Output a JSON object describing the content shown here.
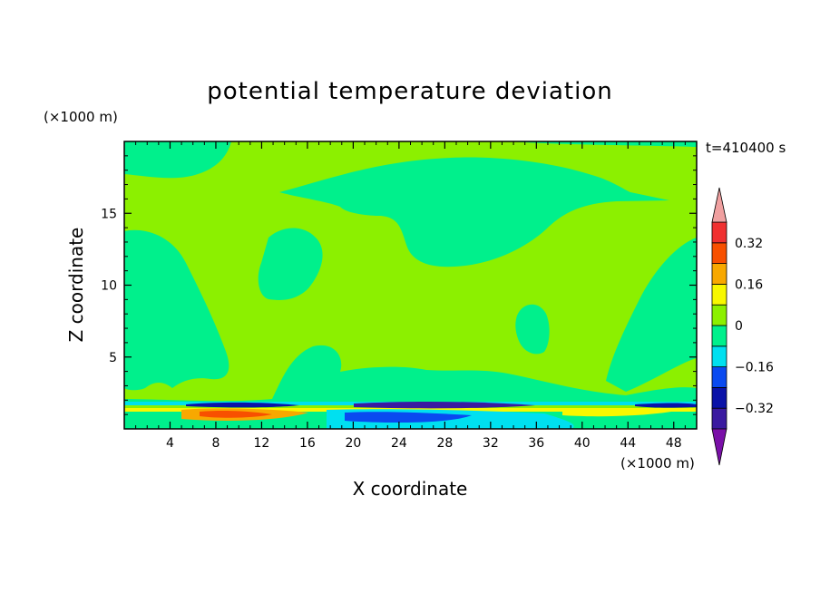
{
  "chart_data": {
    "type": "heatmap",
    "title": "potential temperature deviation",
    "xlabel": "X coordinate",
    "ylabel": "Z coordinate",
    "x_unit": "(×1000 m)",
    "y_unit": "(×1000 m)",
    "time_label": "t=410400 s",
    "xlim": [
      0,
      50
    ],
    "ylim": [
      0,
      20
    ],
    "x_ticks": [
      "4",
      "8",
      "12",
      "16",
      "20",
      "24",
      "28",
      "32",
      "36",
      "40",
      "44",
      "48"
    ],
    "y_ticks": [
      "5",
      "10",
      "15"
    ],
    "colorbar": {
      "levels": [
        -0.4,
        -0.32,
        -0.24,
        -0.16,
        -0.08,
        0,
        0.08,
        0.16,
        0.24,
        0.32,
        0.4
      ],
      "colors": [
        "#7a10a8",
        "#3a1aa0",
        "#0a12a8",
        "#0a4af0",
        "#00e0f0",
        "#00f08c",
        "#8cf000",
        "#f8f800",
        "#f8a800",
        "#f85000",
        "#f03030",
        "#f0a0a0"
      ],
      "tick_labels": [
        "0.32",
        "0.16",
        "0",
        "−0.16",
        "−0.32"
      ],
      "extend": "both"
    },
    "field_description_values": {
      "background_level": "0 to 0.08",
      "regions_level": "-0.08 to 0"
    }
  },
  "colors": {
    "plus_small": "#8cf000",
    "minus_small": "#00f08c",
    "minus_mid": "#00e0f0",
    "minus_large": "#0a12a8",
    "plus_large": "#f85000"
  }
}
